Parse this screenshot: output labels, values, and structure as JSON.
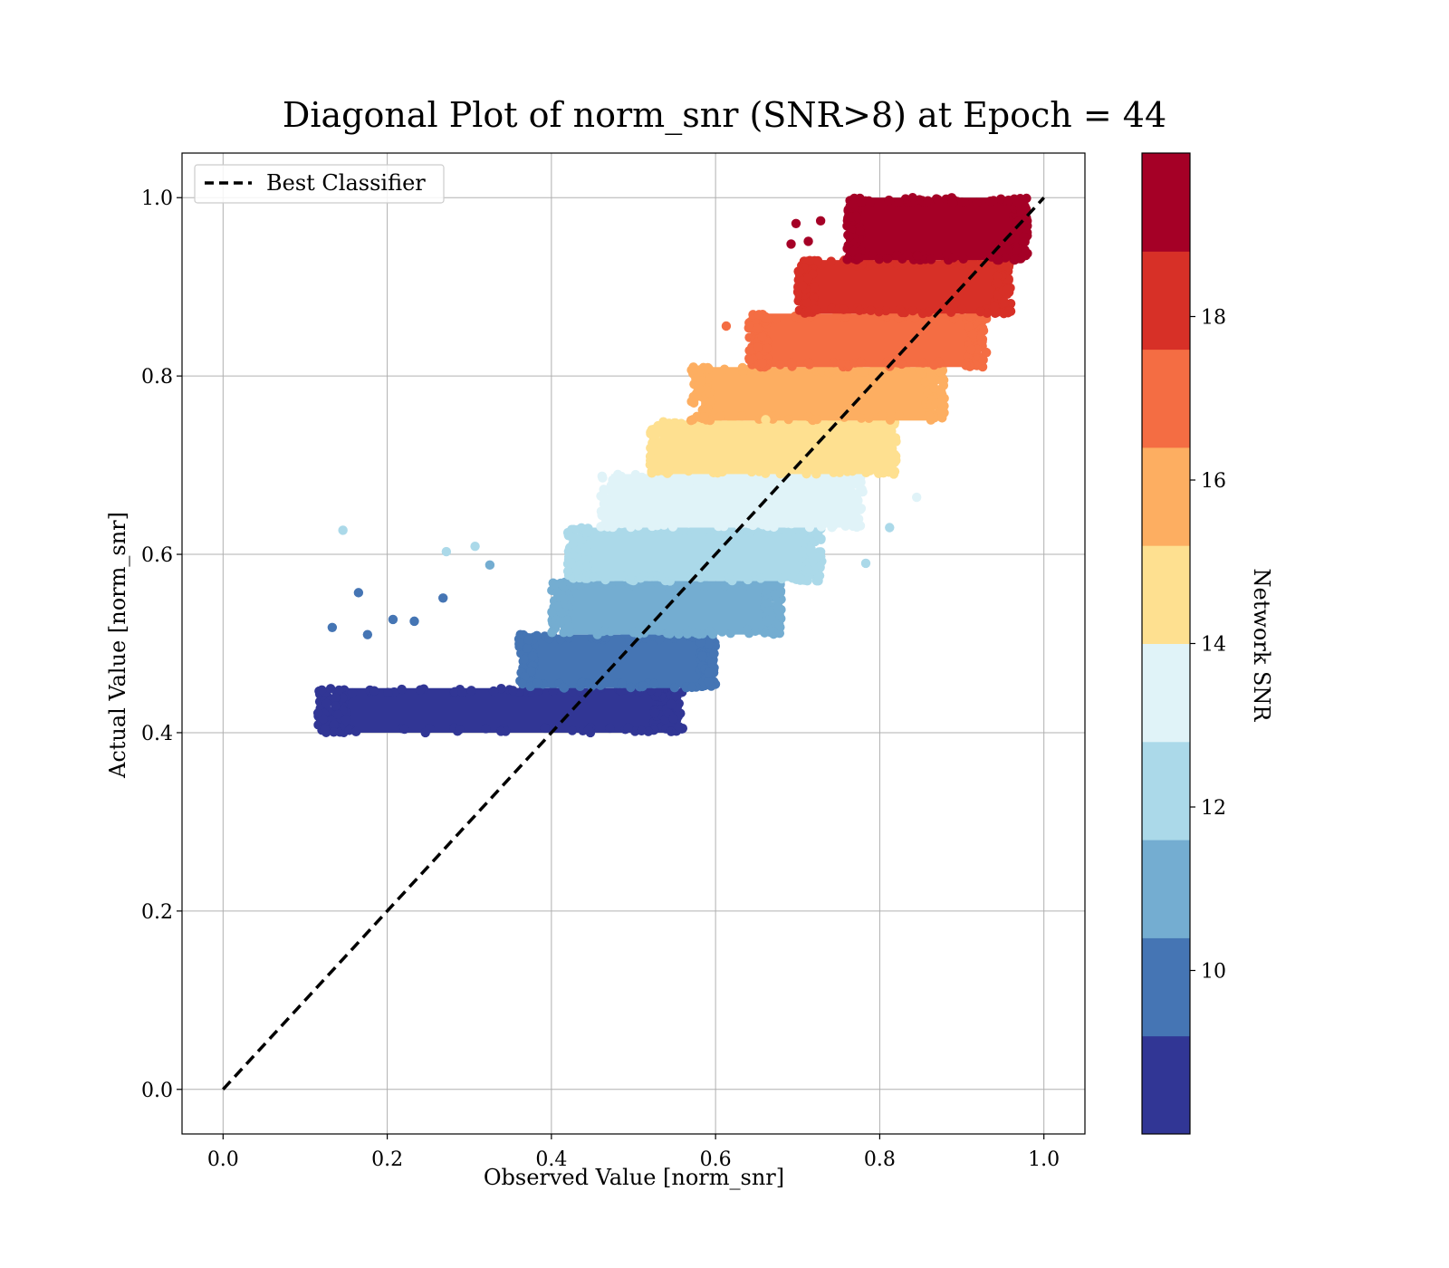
{
  "chart_data": {
    "type": "scatter",
    "title": "Diagonal Plot of norm_snr (SNR>8) at Epoch = 44",
    "xlabel": "Observed Value [norm_snr]",
    "ylabel": "Actual Value [norm_snr]",
    "xlim": [
      -0.05,
      1.05
    ],
    "ylim": [
      -0.05,
      1.05
    ],
    "xticks": [
      "0.0",
      "0.2",
      "0.4",
      "0.6",
      "0.8",
      "1.0"
    ],
    "xtick_values": [
      0.0,
      0.2,
      0.4,
      0.6,
      0.8,
      1.0
    ],
    "yticks": [
      "0.0",
      "0.2",
      "0.4",
      "0.6",
      "0.8",
      "1.0"
    ],
    "ytick_values": [
      0.0,
      0.2,
      0.4,
      0.6,
      0.8,
      1.0
    ],
    "grid": true,
    "legend": {
      "position": "top-left",
      "entries": [
        "Best Classifier"
      ]
    },
    "reference_line": {
      "name": "Best Classifier",
      "style": "dashed",
      "color": "#000000",
      "x": [
        0.0,
        1.0
      ],
      "y": [
        0.0,
        1.0
      ]
    },
    "colorbar": {
      "label": "Network SNR",
      "range": [
        8,
        20
      ],
      "ticks": [
        "10",
        "12",
        "14",
        "16",
        "18"
      ],
      "tick_values": [
        10,
        12,
        14,
        16,
        18
      ],
      "colors": [
        "#313695",
        "#4575b4",
        "#74add1",
        "#abd9e9",
        "#e0f3f8",
        "#fee090",
        "#fdae61",
        "#f46d43",
        "#d73027",
        "#a50026"
      ]
    },
    "bands": [
      {
        "snr": 8.6,
        "y_range": [
          0.4,
          0.45
        ],
        "x_range": [
          0.115,
          0.56
        ],
        "color": "#313695"
      },
      {
        "snr": 9.8,
        "y_range": [
          0.45,
          0.51
        ],
        "x_range": [
          0.36,
          0.6
        ],
        "color": "#4575b4"
      },
      {
        "snr": 11.0,
        "y_range": [
          0.51,
          0.57
        ],
        "x_range": [
          0.4,
          0.68
        ],
        "color": "#74add1"
      },
      {
        "snr": 12.2,
        "y_range": [
          0.57,
          0.63
        ],
        "x_range": [
          0.42,
          0.73
        ],
        "color": "#abd9e9"
      },
      {
        "snr": 13.4,
        "y_range": [
          0.63,
          0.69
        ],
        "x_range": [
          0.46,
          0.78
        ],
        "color": "#e0f3f8"
      },
      {
        "snr": 14.6,
        "y_range": [
          0.69,
          0.75
        ],
        "x_range": [
          0.52,
          0.82
        ],
        "color": "#fee090"
      },
      {
        "snr": 15.8,
        "y_range": [
          0.75,
          0.81
        ],
        "x_range": [
          0.57,
          0.88
        ],
        "color": "#fdae61"
      },
      {
        "snr": 17.0,
        "y_range": [
          0.81,
          0.87
        ],
        "x_range": [
          0.64,
          0.93
        ],
        "color": "#f46d43"
      },
      {
        "snr": 18.2,
        "y_range": [
          0.87,
          0.93
        ],
        "x_range": [
          0.7,
          0.96
        ],
        "color": "#d73027"
      },
      {
        "snr": 19.4,
        "y_range": [
          0.93,
          1.0
        ],
        "x_range": [
          0.76,
          0.98
        ],
        "color": "#a50026"
      }
    ],
    "outliers": [
      {
        "x": 0.146,
        "y": 0.627,
        "color": "#abd9e9"
      },
      {
        "x": 0.307,
        "y": 0.609,
        "color": "#abd9e9"
      },
      {
        "x": 0.272,
        "y": 0.603,
        "color": "#abd9e9"
      },
      {
        "x": 0.165,
        "y": 0.557,
        "color": "#4575b4"
      },
      {
        "x": 0.133,
        "y": 0.518,
        "color": "#4575b4"
      },
      {
        "x": 0.207,
        "y": 0.527,
        "color": "#4575b4"
      },
      {
        "x": 0.233,
        "y": 0.525,
        "color": "#4575b4"
      },
      {
        "x": 0.268,
        "y": 0.551,
        "color": "#4575b4"
      },
      {
        "x": 0.325,
        "y": 0.588,
        "color": "#74add1"
      },
      {
        "x": 0.176,
        "y": 0.51,
        "color": "#4575b4"
      },
      {
        "x": 0.692,
        "y": 0.948,
        "color": "#a50026"
      },
      {
        "x": 0.698,
        "y": 0.971,
        "color": "#a50026"
      },
      {
        "x": 0.713,
        "y": 0.951,
        "color": "#a50026"
      },
      {
        "x": 0.728,
        "y": 0.974,
        "color": "#a50026"
      },
      {
        "x": 0.661,
        "y": 0.751,
        "color": "#fee090"
      },
      {
        "x": 0.845,
        "y": 0.664,
        "color": "#e0f3f8"
      },
      {
        "x": 0.783,
        "y": 0.59,
        "color": "#abd9e9"
      },
      {
        "x": 0.812,
        "y": 0.63,
        "color": "#abd9e9"
      },
      {
        "x": 0.573,
        "y": 0.81,
        "color": "#fdae61"
      },
      {
        "x": 0.613,
        "y": 0.856,
        "color": "#f46d43"
      }
    ]
  }
}
